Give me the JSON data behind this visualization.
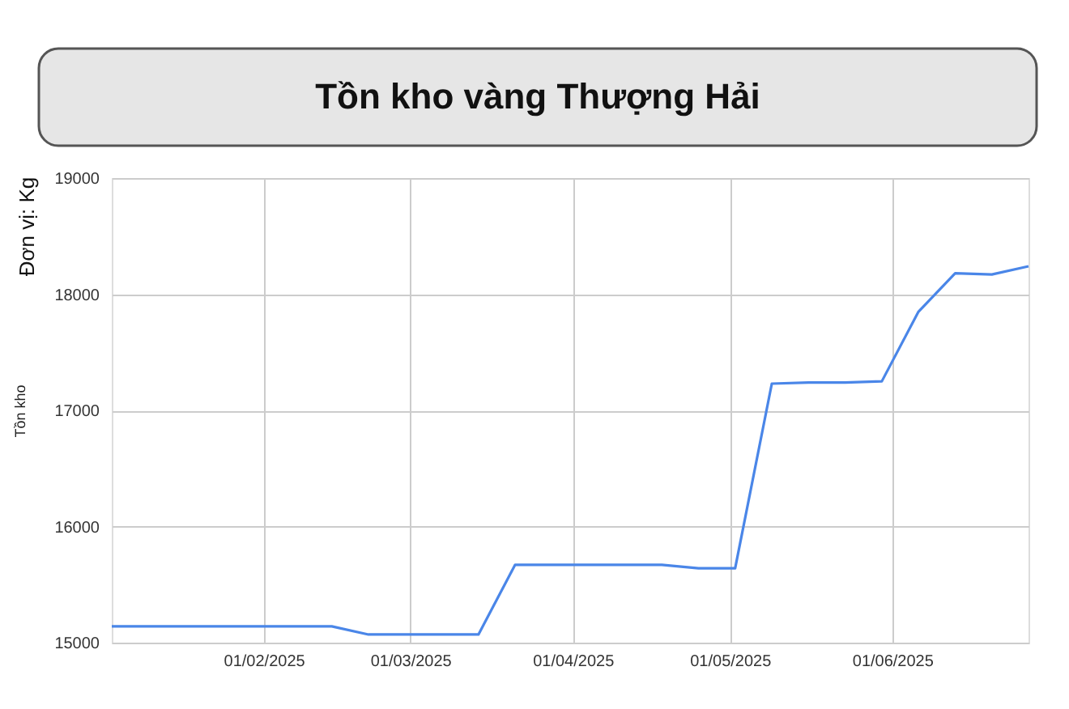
{
  "chart_data": {
    "type": "line",
    "title": "Tồn kho vàng Thượng Hải",
    "ylabel": "Tồn kho",
    "annotations": [
      "Đơn vị: Kg"
    ],
    "x": [
      "2025-01-03",
      "2025-01-10",
      "2025-01-17",
      "2025-01-24",
      "2025-01-31",
      "2025-02-07",
      "2025-02-14",
      "2025-02-21",
      "2025-02-28",
      "2025-03-07",
      "2025-03-14",
      "2025-03-21",
      "2025-03-28",
      "2025-04-04",
      "2025-04-11",
      "2025-04-18",
      "2025-04-25",
      "2025-05-02",
      "2025-05-09",
      "2025-05-16",
      "2025-05-23",
      "2025-05-30",
      "2025-06-06",
      "2025-06-13",
      "2025-06-20",
      "2025-06-27"
    ],
    "series": [
      {
        "color": "#4a86e8",
        "values": [
          15140,
          15140,
          15140,
          15140,
          15140,
          15140,
          15140,
          15070,
          15070,
          15070,
          15070,
          15670,
          15670,
          15670,
          15670,
          15670,
          15640,
          15640,
          17230,
          17240,
          17240,
          17250,
          17850,
          18180,
          18170,
          18240
        ]
      }
    ],
    "xlim": [
      "2025-01-03",
      "2025-06-27"
    ],
    "xticks": [
      {
        "value": "2025-02-01",
        "label": "01/02/2025"
      },
      {
        "value": "2025-03-01",
        "label": "01/03/2025"
      },
      {
        "value": "2025-04-01",
        "label": "01/04/2025"
      },
      {
        "value": "2025-05-01",
        "label": "01/05/2025"
      },
      {
        "value": "2025-06-01",
        "label": "01/06/2025"
      }
    ],
    "ylim": [
      15000,
      19000
    ],
    "yticks": [
      15000,
      16000,
      17000,
      18000,
      19000
    ],
    "grid": true
  }
}
